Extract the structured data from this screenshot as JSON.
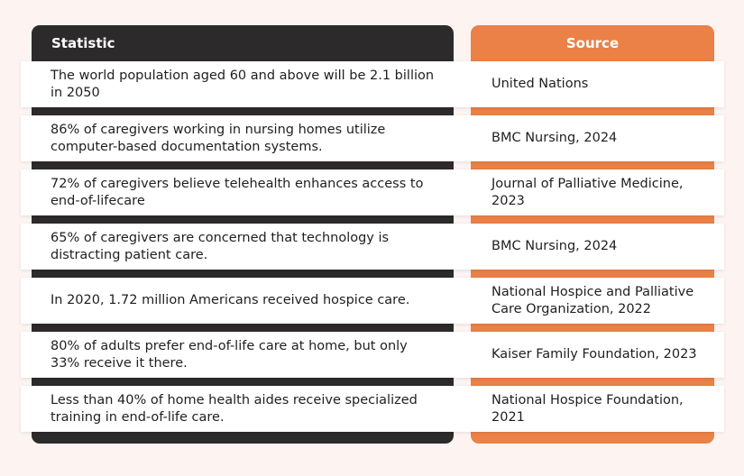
{
  "table": {
    "headers": {
      "statistic": "Statistic",
      "source": "Source"
    },
    "rows": [
      {
        "statistic": "The world population aged 60 and above will be 2.1 billion in 2050",
        "source": "United Nations"
      },
      {
        "statistic": "86% of caregivers working in nursing homes utilize computer-based documentation systems.",
        "source": "BMC Nursing, 2024"
      },
      {
        "statistic": "72% of caregivers believe telehealth enhances access to end-of-lifecare",
        "source": "Journal of Palliative Medicine, 2023"
      },
      {
        "statistic": "65% of caregivers are concerned that technology is distracting patient care.",
        "source": "BMC Nursing, 2024"
      },
      {
        "statistic": "In 2020, 1.72 million Americans received hospice care.",
        "source": "National Hospice and Palliative Care Organization, 2022"
      },
      {
        "statistic": "80% of adults prefer end-of-life care at home, but only 33% receive it there.",
        "source": "Kaiser Family Foundation, 2023"
      },
      {
        "statistic": "Less than 40% of home health aides receive specialized training in end-of-life care.",
        "source": "National Hospice Foundation, 2021"
      }
    ]
  },
  "colors": {
    "background": "#fdf4f2",
    "statistic_column": "#2d2a2b",
    "source_column": "#eb8146",
    "row": "#ffffff"
  }
}
